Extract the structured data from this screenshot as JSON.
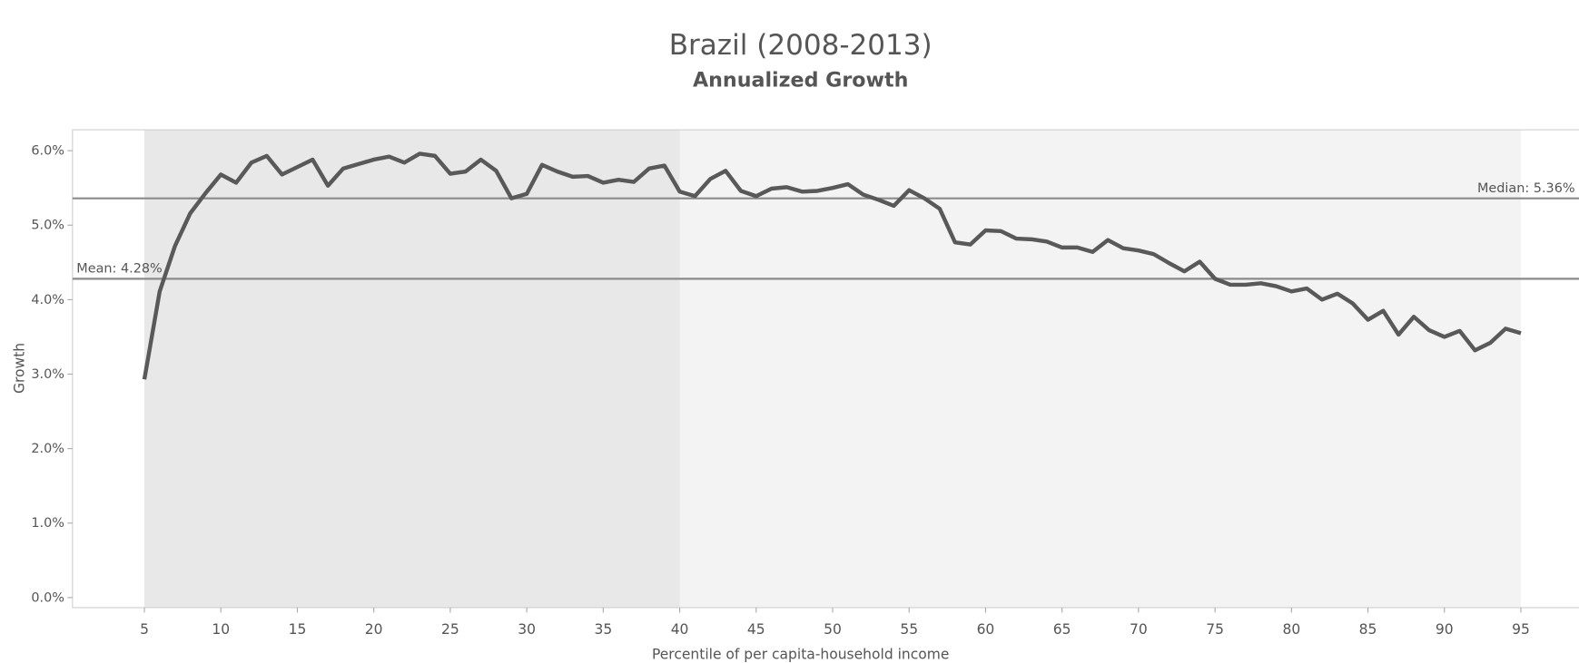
{
  "chart_data": {
    "type": "line",
    "title": "Brazil  (2008-2013)",
    "subtitle": "Annualized Growth",
    "x_label": "Percentile of per capita-household income",
    "y_label": "Growth",
    "x": [
      5,
      6,
      7,
      8,
      9,
      10,
      11,
      12,
      13,
      14,
      15,
      16,
      17,
      18,
      19,
      20,
      21,
      22,
      23,
      24,
      25,
      26,
      27,
      28,
      29,
      30,
      31,
      32,
      33,
      34,
      35,
      36,
      37,
      38,
      39,
      40,
      41,
      42,
      43,
      44,
      45,
      46,
      47,
      48,
      49,
      50,
      51,
      52,
      53,
      54,
      55,
      56,
      57,
      58,
      59,
      60,
      61,
      62,
      63,
      64,
      65,
      66,
      67,
      68,
      69,
      70,
      71,
      72,
      73,
      74,
      75,
      76,
      77,
      78,
      79,
      80,
      81,
      82,
      83,
      84,
      85,
      86,
      87,
      88,
      89,
      90,
      91,
      92,
      93,
      94,
      95
    ],
    "values": [
      2.93,
      4.11,
      4.72,
      5.16,
      5.43,
      5.68,
      5.57,
      5.84,
      5.93,
      5.68,
      5.78,
      5.88,
      5.53,
      5.76,
      5.82,
      5.88,
      5.92,
      5.84,
      5.96,
      5.93,
      5.69,
      5.72,
      5.88,
      5.73,
      5.36,
      5.42,
      5.81,
      5.72,
      5.65,
      5.66,
      5.57,
      5.61,
      5.58,
      5.76,
      5.8,
      5.45,
      5.39,
      5.62,
      5.73,
      5.46,
      5.39,
      5.49,
      5.51,
      5.45,
      5.46,
      5.5,
      5.55,
      5.41,
      5.34,
      5.26,
      5.47,
      5.36,
      5.22,
      4.77,
      4.74,
      4.93,
      4.92,
      4.82,
      4.81,
      4.78,
      4.7,
      4.7,
      4.64,
      4.8,
      4.69,
      4.66,
      4.61,
      4.49,
      4.38,
      4.51,
      4.28,
      4.2,
      4.2,
      4.22,
      4.18,
      4.11,
      4.15,
      4.0,
      4.08,
      3.95,
      3.73,
      3.85,
      3.53,
      3.77,
      3.59,
      3.5,
      3.58,
      3.32,
      3.42,
      3.61,
      3.55
    ],
    "color": "#595959",
    "xlim": [
      0.3,
      98.8
    ],
    "ylim": [
      -0.135,
      6.28
    ],
    "xticks": [
      5,
      10,
      15,
      20,
      25,
      30,
      35,
      40,
      45,
      50,
      55,
      60,
      65,
      70,
      75,
      80,
      85,
      90,
      95
    ],
    "yticks": [
      {
        "value": 0,
        "label": "0.0%"
      },
      {
        "value": 1,
        "label": "1.0%"
      },
      {
        "value": 2,
        "label": "2.0%"
      },
      {
        "value": 3,
        "label": "3.0%"
      },
      {
        "value": 4,
        "label": "4.0%"
      },
      {
        "value": 5,
        "label": "5.0%"
      },
      {
        "value": 6,
        "label": "6.0%"
      }
    ],
    "bands": [
      {
        "from": 5,
        "to": 40,
        "color": "#e8e8e8"
      },
      {
        "from": 40,
        "to": 95,
        "color": "#f3f3f3"
      }
    ],
    "reference_lines": [
      {
        "value": 4.28,
        "label": "Mean:  4.28%",
        "color": "#8a8a8a",
        "label_side": "left"
      },
      {
        "value": 5.36,
        "label": "Median: 5.36%",
        "color": "#8a8a8a",
        "label_side": "right"
      }
    ]
  }
}
